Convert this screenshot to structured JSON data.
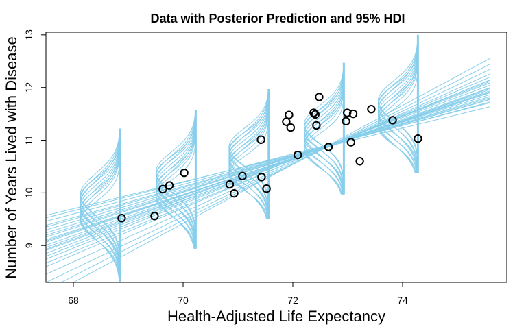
{
  "chart_data": {
    "type": "scatter",
    "title": "Data with Posterior Prediction and 95% HDI",
    "xlabel": "Health-Adjusted Life Expectancy",
    "ylabel": "Number of Years Lived with Disease",
    "xlim": [
      67.5,
      75.9
    ],
    "ylim": [
      8.3,
      13.05
    ],
    "x_ticks": [
      68,
      70,
      72,
      74
    ],
    "y_ticks": [
      9,
      10,
      11,
      12,
      13
    ],
    "grid": false,
    "colors": {
      "posterior": "#87ceeb",
      "points": "#000000",
      "frame": "#000000"
    },
    "points": [
      {
        "x": 68.88,
        "y": 9.52
      },
      {
        "x": 69.48,
        "y": 9.56
      },
      {
        "x": 69.63,
        "y": 10.07
      },
      {
        "x": 69.75,
        "y": 10.14
      },
      {
        "x": 70.02,
        "y": 10.38
      },
      {
        "x": 70.85,
        "y": 10.16
      },
      {
        "x": 70.93,
        "y": 9.99
      },
      {
        "x": 71.08,
        "y": 10.32
      },
      {
        "x": 71.42,
        "y": 11.01
      },
      {
        "x": 71.43,
        "y": 10.3
      },
      {
        "x": 71.52,
        "y": 10.08
      },
      {
        "x": 71.88,
        "y": 11.35
      },
      {
        "x": 71.93,
        "y": 11.48
      },
      {
        "x": 71.96,
        "y": 11.24
      },
      {
        "x": 72.09,
        "y": 10.72
      },
      {
        "x": 72.38,
        "y": 11.52
      },
      {
        "x": 72.41,
        "y": 11.49
      },
      {
        "x": 72.43,
        "y": 11.28
      },
      {
        "x": 72.48,
        "y": 11.82
      },
      {
        "x": 72.65,
        "y": 10.87
      },
      {
        "x": 72.97,
        "y": 11.36
      },
      {
        "x": 72.99,
        "y": 11.52
      },
      {
        "x": 73.06,
        "y": 10.96
      },
      {
        "x": 73.1,
        "y": 11.5
      },
      {
        "x": 73.22,
        "y": 10.6
      },
      {
        "x": 73.43,
        "y": 11.59
      },
      {
        "x": 73.82,
        "y": 11.38
      },
      {
        "x": 74.28,
        "y": 11.03
      }
    ],
    "posterior_lines": [
      {
        "intercept": 9.28,
        "slope": 0.345
      },
      {
        "intercept": 9.24,
        "slope": 0.355
      },
      {
        "intercept": 9.36,
        "slope": 0.33
      },
      {
        "intercept": 9.12,
        "slope": 0.385
      },
      {
        "intercept": 9.45,
        "slope": 0.31
      },
      {
        "intercept": 9.05,
        "slope": 0.4
      },
      {
        "intercept": 9.53,
        "slope": 0.295
      },
      {
        "intercept": 8.95,
        "slope": 0.42
      },
      {
        "intercept": 8.82,
        "slope": 0.445
      },
      {
        "intercept": 8.69,
        "slope": 0.47
      },
      {
        "intercept": 8.42,
        "slope": 0.53
      },
      {
        "intercept": 8.3,
        "slope": 0.56
      },
      {
        "intercept": 9.6,
        "slope": 0.28
      },
      {
        "intercept": 9.66,
        "slope": 0.27
      },
      {
        "intercept": 9.33,
        "slope": 0.34
      },
      {
        "intercept": 9.19,
        "slope": 0.365
      },
      {
        "intercept": 9.4,
        "slope": 0.32
      },
      {
        "intercept": 9.0,
        "slope": 0.41
      },
      {
        "intercept": 9.5,
        "slope": 0.3
      },
      {
        "intercept": 9.15,
        "slope": 0.375
      },
      {
        "intercept": 8.88,
        "slope": 0.43
      },
      {
        "intercept": 9.7,
        "slope": 0.255
      },
      {
        "intercept": 9.26,
        "slope": 0.35
      },
      {
        "intercept": 9.1,
        "slope": 0.38
      },
      {
        "intercept": 8.55,
        "slope": 0.5
      }
    ],
    "hdi_curves": [
      {
        "x": 68.85,
        "ymin": 8.3,
        "ymax": 11.22,
        "mean": 9.72,
        "sd": 0.4
      },
      {
        "x": 70.23,
        "ymin": 8.94,
        "ymax": 11.58,
        "mean": 10.15,
        "sd": 0.38
      },
      {
        "x": 71.56,
        "ymin": 9.51,
        "ymax": 11.97,
        "mean": 10.62,
        "sd": 0.36
      },
      {
        "x": 72.93,
        "ymin": 9.97,
        "ymax": 12.47,
        "mean": 11.05,
        "sd": 0.36
      },
      {
        "x": 74.28,
        "ymin": 10.38,
        "ymax": 13.0,
        "mean": 11.5,
        "sd": 0.38
      }
    ]
  }
}
